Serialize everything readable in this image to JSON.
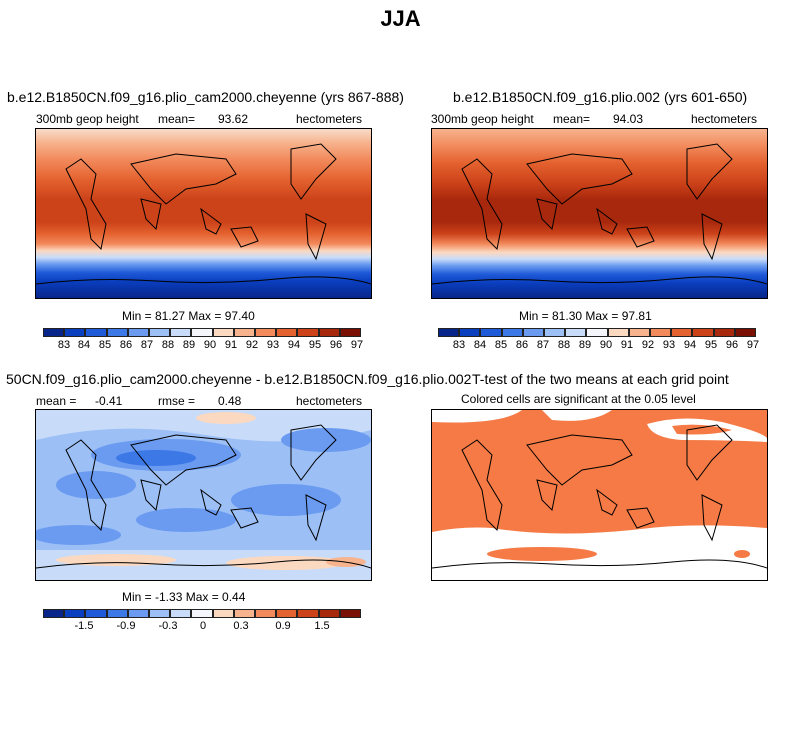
{
  "title": "JJA",
  "panels": [
    {
      "title": "b.e12.B1850CN.f09_g16.plio_cam2000.cheyenne (yrs 867-888)",
      "variable": "300mb geop height",
      "mean_label": "mean=",
      "mean_value": "93.62",
      "units": "hectometers",
      "min_max": "Min =  81.27 Max =  97.40",
      "colorbar_ticks": [
        "83",
        "84",
        "85",
        "86",
        "87",
        "88",
        "89",
        "90",
        "91",
        "92",
        "93",
        "94",
        "95",
        "96",
        "97"
      ]
    },
    {
      "title": "b.e12.B1850CN.f09_g16.plio.002 (yrs 601-650)",
      "variable": "300mb geop height",
      "mean_label": "mean=",
      "mean_value": "94.03",
      "units": "hectometers",
      "min_max": "Min =  81.30 Max =  97.81",
      "colorbar_ticks": [
        "83",
        "84",
        "85",
        "86",
        "87",
        "88",
        "89",
        "90",
        "91",
        "92",
        "93",
        "94",
        "95",
        "96",
        "97"
      ]
    },
    {
      "title": "50CN.f09_g16.plio_cam2000.cheyenne - b.e12.B1850CN.f09_g16.plio.002",
      "mean_label": "mean =",
      "mean_value": "-0.41",
      "rmse_label": "rmse =",
      "rmse_value": "0.48",
      "units": "hectometers",
      "min_max": "Min =  -1.33 Max =   0.44",
      "colorbar_ticks": [
        "-1.5",
        "-0.9",
        "-0.3",
        "0",
        "0.3",
        "0.9",
        "1.5"
      ]
    },
    {
      "title": "T-test of the two means at each grid point",
      "subtitle": "Colored cells are significant at the 0.05 level"
    }
  ],
  "colors": {
    "palette": [
      "#08268a",
      "#0a3fc0",
      "#1f5ad8",
      "#3c78e6",
      "#6a9bf0",
      "#9cbff6",
      "#c8dcfa",
      "#f4f6fb",
      "#fbd8c0",
      "#f7b38e",
      "#f28a5c",
      "#e4622f",
      "#cc4219",
      "#a8280d",
      "#7a0f04"
    ],
    "significant": "#f57a45"
  }
}
